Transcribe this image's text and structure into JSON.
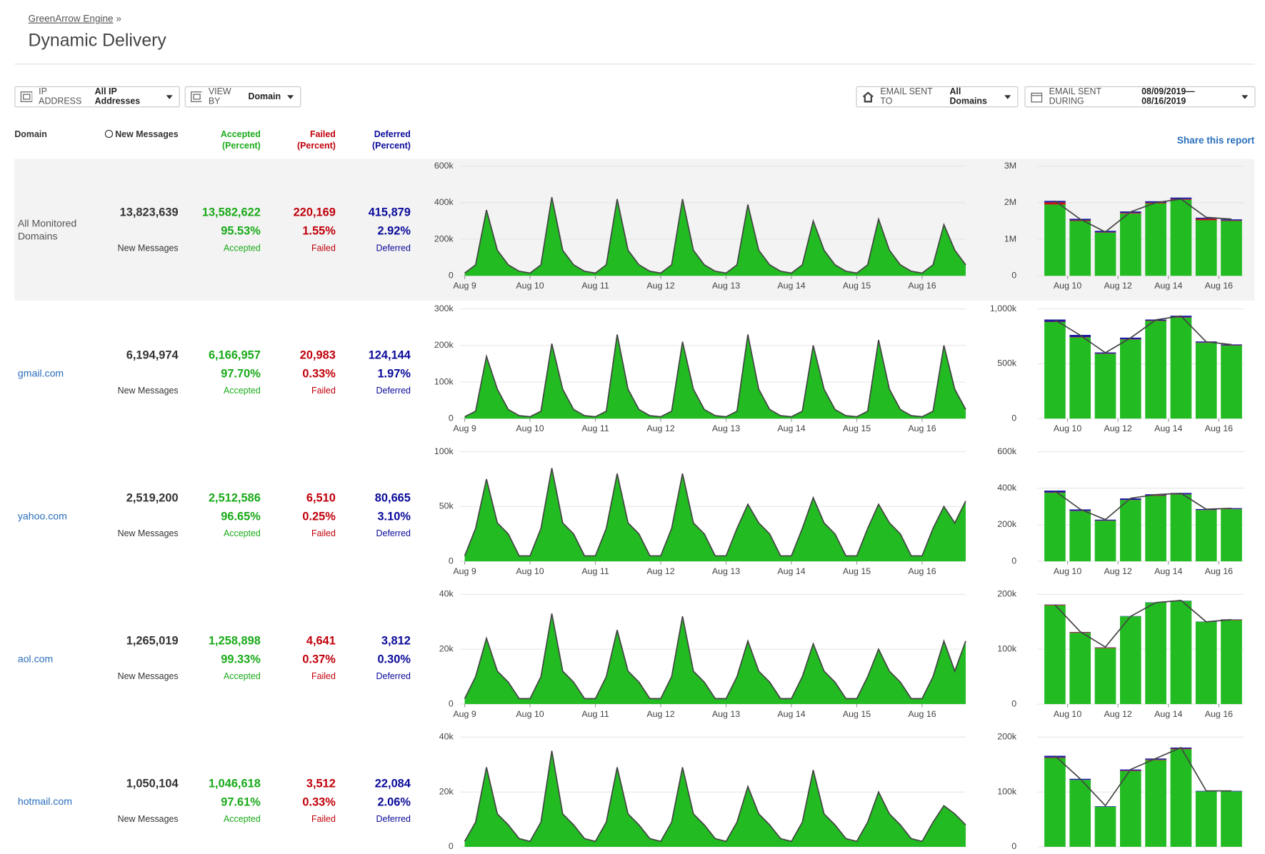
{
  "header": {
    "breadcrumb": "GreenArrow Engine",
    "separator": "»",
    "title": "Dynamic Delivery"
  },
  "filters": [
    {
      "label": "IP ADDRESS",
      "value": "All IP Addresses"
    },
    {
      "label": "VIEW BY",
      "value": "Domain"
    },
    {
      "label": "EMAIL SENT TO",
      "value": "All Domains"
    },
    {
      "label": "EMAIL SENT DURING",
      "value": "08/09/2019—08/16/2019"
    }
  ],
  "columns": [
    {
      "name": "Domain"
    },
    {
      "name": "New Messages"
    },
    {
      "name": "Accepted",
      "sub": "(Percent)"
    },
    {
      "name": "Failed",
      "sub": "(Percent)"
    },
    {
      "name": "Deferred",
      "sub": "(Percent)"
    }
  ],
  "share_link": "Share this report",
  "rows": [
    {
      "domain": "All Monitored Domains",
      "new": "13,823,639",
      "new_label": "New Messages",
      "accepted": "13,582,622",
      "accepted_pct": "95.53%",
      "accepted_label": "Accepted",
      "failed": "220,169",
      "failed_pct": "1.55%",
      "failed_label": "Failed",
      "deferred": "415,879",
      "deferred_pct": "2.92%",
      "deferred_label": "Deferred"
    },
    {
      "domain": "gmail.com",
      "new": "6,194,974",
      "new_label": "New Messages",
      "accepted": "6,166,957",
      "accepted_pct": "97.70%",
      "accepted_label": "Accepted",
      "failed": "20,983",
      "failed_pct": "0.33%",
      "failed_label": "Failed",
      "deferred": "124,144",
      "deferred_pct": "1.97%",
      "deferred_label": "Deferred"
    },
    {
      "domain": "yahoo.com",
      "new": "2,519,200",
      "new_label": "New Messages",
      "accepted": "2,512,586",
      "accepted_pct": "96.65%",
      "accepted_label": "Accepted",
      "failed": "6,510",
      "failed_pct": "0.25%",
      "failed_label": "Failed",
      "deferred": "80,665",
      "deferred_pct": "3.10%",
      "deferred_label": "Deferred"
    },
    {
      "domain": "aol.com",
      "new": "1,265,019",
      "new_label": "New Messages",
      "accepted": "1,258,898",
      "accepted_pct": "99.33%",
      "accepted_label": "Accepted",
      "failed": "4,641",
      "failed_pct": "0.37%",
      "failed_label": "Failed",
      "deferred": "3,812",
      "deferred_pct": "0.30%",
      "deferred_label": "Deferred"
    },
    {
      "domain": "hotmail.com",
      "new": "1,050,104",
      "new_label": "New Messages",
      "accepted": "1,046,618",
      "accepted_pct": "97.61%",
      "accepted_label": "Accepted",
      "failed": "3,512",
      "failed_pct": "0.33%",
      "failed_label": "Failed",
      "deferred": "22,084",
      "deferred_pct": "2.06%",
      "deferred_label": "Deferred"
    }
  ],
  "chart_data": [
    {
      "type": "area",
      "color": "#22bb22",
      "line_color": "#444444",
      "grid": true,
      "categories": [
        "Aug 9",
        null,
        null,
        null,
        null,
        null,
        "Aug 10",
        null,
        null,
        null,
        null,
        null,
        "Aug 11",
        null,
        null,
        null,
        null,
        null,
        "Aug 12",
        null,
        null,
        null,
        null,
        null,
        "Aug 13",
        null,
        null,
        null,
        null,
        null,
        "Aug 14",
        null,
        null,
        null,
        null,
        null,
        "Aug 15",
        null,
        null,
        null,
        null,
        null,
        "Aug 16",
        null,
        null,
        null,
        null
      ],
      "values": [
        15000,
        60000,
        360000,
        140000,
        60000,
        25000,
        15000,
        60000,
        430000,
        140000,
        60000,
        25000,
        15000,
        60000,
        420000,
        140000,
        60000,
        25000,
        15000,
        60000,
        420000,
        140000,
        60000,
        25000,
        15000,
        60000,
        390000,
        140000,
        60000,
        25000,
        15000,
        60000,
        300000,
        140000,
        60000,
        25000,
        15000,
        60000,
        310000,
        140000,
        60000,
        25000,
        15000,
        60000,
        280000,
        140000,
        60000
      ],
      "ylim": [
        0,
        600000
      ],
      "yticks": [
        0,
        {
          "value": 200000,
          "label": "200k"
        },
        {
          "value": 400000,
          "label": "400k"
        },
        {
          "value": 600000,
          "label": "600k"
        }
      ]
    },
    {
      "type": "stacked_bar",
      "grid": true,
      "categories": [
        null,
        "Aug 10",
        null,
        "Aug 12",
        null,
        "Aug 14",
        null,
        "Aug 16"
      ],
      "series": [
        {
          "color": "#22bb22",
          "values": [
            1950000,
            1500000,
            1180000,
            1700000,
            1980000,
            2080000,
            1520000,
            1500000
          ]
        },
        {
          "color": "#cc1111",
          "values": [
            60000,
            20000,
            10000,
            20000,
            20000,
            20000,
            40000,
            15000
          ]
        },
        {
          "color": "#1a1aa0",
          "values": [
            40000,
            40000,
            40000,
            40000,
            40000,
            40000,
            30000,
            30000
          ]
        },
        {
          "type": "line",
          "color": "#444444",
          "values": [
            2050000,
            1550000,
            1200000,
            1750000,
            2000000,
            2100000,
            1600000,
            1550000
          ]
        }
      ],
      "ylim": [
        0,
        3000000
      ],
      "yticks": [
        0,
        {
          "value": 1000000,
          "label": "1M"
        },
        {
          "value": 2000000,
          "label": "2M"
        },
        {
          "value": 3000000,
          "label": "3M"
        }
      ]
    },
    {
      "type": "area",
      "color": "#22bb22",
      "line_color": "#444444",
      "grid": true,
      "categories": [
        "Aug 9",
        null,
        null,
        null,
        null,
        null,
        "Aug 10",
        null,
        null,
        null,
        null,
        null,
        "Aug 11",
        null,
        null,
        null,
        null,
        null,
        "Aug 12",
        null,
        null,
        null,
        null,
        null,
        "Aug 13",
        null,
        null,
        null,
        null,
        null,
        "Aug 14",
        null,
        null,
        null,
        null,
        null,
        "Aug 15",
        null,
        null,
        null,
        null,
        null,
        "Aug 16",
        null,
        null,
        null,
        null
      ],
      "values": [
        5000,
        20000,
        170000,
        80000,
        25000,
        8000,
        5000,
        20000,
        205000,
        80000,
        25000,
        8000,
        5000,
        20000,
        230000,
        80000,
        25000,
        8000,
        5000,
        20000,
        210000,
        80000,
        25000,
        8000,
        5000,
        20000,
        230000,
        80000,
        25000,
        8000,
        5000,
        20000,
        200000,
        80000,
        25000,
        8000,
        5000,
        20000,
        215000,
        80000,
        25000,
        8000,
        5000,
        20000,
        200000,
        80000,
        25000
      ],
      "ylim": [
        0,
        300000
      ],
      "yticks": [
        0,
        {
          "value": 100000,
          "label": "100k"
        },
        {
          "value": 200000,
          "label": "200k"
        },
        {
          "value": 300000,
          "label": "300k"
        }
      ]
    },
    {
      "type": "stacked_bar",
      "grid": true,
      "categories": [
        null,
        "Aug 10",
        null,
        "Aug 12",
        null,
        "Aug 14",
        null,
        "Aug 16"
      ],
      "series": [
        {
          "color": "#22bb22",
          "values": [
            880000,
            740000,
            590000,
            720000,
            890000,
            920000,
            690000,
            665000
          ]
        },
        {
          "color": "#cc1111",
          "values": [
            3000,
            3000,
            3000,
            3000,
            3000,
            3000,
            3000,
            3000
          ]
        },
        {
          "color": "#1a1aa0",
          "values": [
            20000,
            20000,
            10000,
            15000,
            10000,
            15000,
            10000,
            8000
          ]
        },
        {
          "type": "line",
          "color": "#444444",
          "values": [
            900000,
            760000,
            600000,
            735000,
            900000,
            935000,
            700000,
            675000
          ]
        }
      ],
      "ylim": [
        0,
        1000000
      ],
      "yticks": [
        0,
        {
          "value": 500000,
          "label": "500k"
        },
        {
          "value": 1000000,
          "label": "1,000k"
        }
      ]
    },
    {
      "type": "area",
      "color": "#22bb22",
      "line_color": "#444444",
      "grid": true,
      "categories": [
        "Aug 9",
        null,
        null,
        null,
        null,
        null,
        "Aug 10",
        null,
        null,
        null,
        null,
        null,
        "Aug 11",
        null,
        null,
        null,
        null,
        null,
        "Aug 12",
        null,
        null,
        null,
        null,
        null,
        "Aug 13",
        null,
        null,
        null,
        null,
        null,
        "Aug 14",
        null,
        null,
        null,
        null,
        null,
        "Aug 15",
        null,
        null,
        null,
        null,
        null,
        "Aug 16",
        null,
        null,
        null,
        null
      ],
      "values": [
        5000,
        30000,
        75000,
        35000,
        25000,
        5000,
        5000,
        30000,
        85000,
        35000,
        25000,
        5000,
        5000,
        30000,
        80000,
        35000,
        25000,
        5000,
        5000,
        30000,
        80000,
        35000,
        25000,
        5000,
        5000,
        30000,
        52000,
        35000,
        25000,
        5000,
        5000,
        30000,
        58000,
        35000,
        25000,
        5000,
        5000,
        30000,
        52000,
        35000,
        25000,
        5000,
        5000,
        30000,
        50000,
        35000,
        55000
      ],
      "ylim": [
        0,
        100000
      ],
      "yticks": [
        0,
        {
          "value": 50000,
          "label": "50k"
        },
        {
          "value": 100000,
          "label": "100k"
        }
      ]
    },
    {
      "type": "stacked_bar",
      "grid": true,
      "categories": [
        null,
        "Aug 10",
        null,
        "Aug 12",
        null,
        "Aug 14",
        null,
        "Aug 16"
      ],
      "series": [
        {
          "color": "#22bb22",
          "values": [
            375000,
            275000,
            222000,
            335000,
            358000,
            365000,
            280000,
            285000
          ]
        },
        {
          "color": "#cc1111",
          "values": [
            2000,
            1000,
            1000,
            1000,
            3000,
            1000,
            1000,
            1000
          ]
        },
        {
          "color": "#1a1aa0",
          "values": [
            10000,
            8000,
            5000,
            8000,
            6000,
            8000,
            5000,
            5000
          ]
        },
        {
          "type": "line",
          "color": "#444444",
          "values": [
            385000,
            285000,
            228000,
            345000,
            365000,
            372000,
            285000,
            290000
          ]
        }
      ],
      "ylim": [
        0,
        600000
      ],
      "yticks": [
        0,
        {
          "value": 200000,
          "label": "200k"
        },
        {
          "value": 400000,
          "label": "400k"
        },
        {
          "value": 600000,
          "label": "600k"
        }
      ]
    },
    {
      "type": "area",
      "color": "#22bb22",
      "line_color": "#444444",
      "grid": true,
      "categories": [
        "Aug 9",
        null,
        null,
        null,
        null,
        null,
        "Aug 10",
        null,
        null,
        null,
        null,
        null,
        "Aug 11",
        null,
        null,
        null,
        null,
        null,
        "Aug 12",
        null,
        null,
        null,
        null,
        null,
        "Aug 13",
        null,
        null,
        null,
        null,
        null,
        "Aug 14",
        null,
        null,
        null,
        null,
        null,
        "Aug 15",
        null,
        null,
        null,
        null,
        null,
        "Aug 16",
        null,
        null,
        null,
        null
      ],
      "values": [
        2000,
        10000,
        24000,
        12000,
        8000,
        2000,
        2000,
        10000,
        33000,
        12000,
        8000,
        2000,
        2000,
        10000,
        27000,
        12000,
        8000,
        2000,
        2000,
        10000,
        32000,
        12000,
        8000,
        2000,
        2000,
        10000,
        23000,
        12000,
        8000,
        2000,
        2000,
        10000,
        22000,
        12000,
        8000,
        2000,
        2000,
        10000,
        20000,
        12000,
        8000,
        2000,
        2000,
        10000,
        23000,
        12000,
        23000
      ],
      "ylim": [
        0,
        40000
      ],
      "yticks": [
        0,
        {
          "value": 20000,
          "label": "20k"
        },
        {
          "value": 40000,
          "label": "40k"
        }
      ]
    },
    {
      "type": "stacked_bar",
      "grid": true,
      "categories": [
        null,
        "Aug 10",
        null,
        "Aug 12",
        null,
        "Aug 14",
        null,
        "Aug 16"
      ],
      "series": [
        {
          "color": "#22bb22",
          "values": [
            180000,
            130000,
            102000,
            160000,
            185000,
            188000,
            150000,
            153000
          ]
        },
        {
          "color": "#cc1111",
          "values": [
            1000,
            1000,
            1000,
            0,
            0,
            0,
            0,
            1000
          ]
        },
        {
          "color": "#1a1aa0",
          "values": [
            500,
            500,
            500,
            500,
            500,
            500,
            500,
            500
          ]
        },
        {
          "type": "line",
          "color": "#444444",
          "values": [
            181000,
            132000,
            104000,
            160000,
            185000,
            189000,
            150000,
            154000
          ]
        }
      ],
      "ylim": [
        0,
        200000
      ],
      "yticks": [
        0,
        {
          "value": 100000,
          "label": "100k"
        },
        {
          "value": 200000,
          "label": "200k"
        }
      ]
    },
    {
      "type": "area",
      "color": "#22bb22",
      "line_color": "#444444",
      "grid": true,
      "values": [
        2000,
        9000,
        29000,
        12000,
        8000,
        3000,
        2000,
        9000,
        35000,
        12000,
        8000,
        3000,
        2000,
        9000,
        29000,
        12000,
        8000,
        3000,
        2000,
        9000,
        29000,
        12000,
        8000,
        3000,
        2000,
        9000,
        22000,
        12000,
        8000,
        3000,
        2000,
        9000,
        28000,
        12000,
        8000,
        3000,
        2000,
        9000,
        20000,
        12000,
        8000,
        3000,
        2000,
        9000,
        15000,
        12000,
        8000
      ],
      "ylim": [
        0,
        40000
      ],
      "yticks": [
        0,
        {
          "value": 20000,
          "label": "20k"
        },
        {
          "value": 40000,
          "label": "40k"
        }
      ]
    },
    {
      "type": "stacked_bar",
      "grid": true,
      "series": [
        {
          "color": "#22bb22",
          "values": [
            162000,
            122000,
            73000,
            138000,
            158000,
            178000,
            101000,
            101000
          ]
        },
        {
          "color": "#cc1111",
          "values": [
            1000,
            0,
            0,
            1000,
            1000,
            1000,
            0,
            0
          ]
        },
        {
          "color": "#1a1aa0",
          "values": [
            3000,
            2000,
            1000,
            2000,
            2000,
            2000,
            1000,
            1000
          ]
        },
        {
          "type": "line",
          "color": "#444444",
          "values": [
            166000,
            124000,
            75000,
            141000,
            161000,
            181000,
            102000,
            102000
          ]
        }
      ],
      "ylim": [
        0,
        200000
      ],
      "yticks": [
        0,
        {
          "value": 100000,
          "label": "100k"
        },
        {
          "value": 200000,
          "label": "200k"
        }
      ]
    }
  ]
}
